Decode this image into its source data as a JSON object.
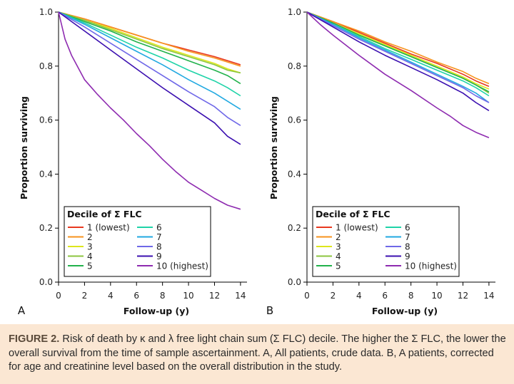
{
  "chart_data": [
    {
      "type": "line",
      "panel_label": "A",
      "xlabel": "Follow-up (y)",
      "ylabel": "Proportion surviving",
      "xlim": [
        0,
        14.5
      ],
      "ylim": [
        0.0,
        1.0
      ],
      "x_ticks": [
        "0",
        "2",
        "4",
        "6",
        "8",
        "10",
        "12",
        "14"
      ],
      "y_ticks": [
        "0.0",
        "0.2",
        "0.4",
        "0.6",
        "0.8",
        "1.0"
      ],
      "legend_title": "Decile of Σ FLC",
      "series": [
        {
          "name": "1 (lowest)",
          "color": "#e8381f",
          "x": [
            0,
            2,
            4,
            6,
            8,
            10,
            12,
            13,
            14
          ],
          "values": [
            1.0,
            0.975,
            0.945,
            0.915,
            0.885,
            0.86,
            0.835,
            0.82,
            0.805
          ]
        },
        {
          "name": "2",
          "color": "#f7931e",
          "x": [
            0,
            2,
            4,
            6,
            8,
            10,
            12,
            13,
            14
          ],
          "values": [
            1.0,
            0.975,
            0.945,
            0.915,
            0.885,
            0.855,
            0.83,
            0.815,
            0.8
          ]
        },
        {
          "name": "3",
          "color": "#dde61c",
          "x": [
            0,
            2,
            4,
            6,
            8,
            10,
            12,
            13,
            14
          ],
          "values": [
            1.0,
            0.97,
            0.94,
            0.905,
            0.87,
            0.84,
            0.81,
            0.79,
            0.775
          ]
        },
        {
          "name": "4",
          "color": "#8cc63f",
          "x": [
            0,
            2,
            4,
            6,
            8,
            10,
            12,
            13,
            14
          ],
          "values": [
            1.0,
            0.97,
            0.935,
            0.9,
            0.865,
            0.835,
            0.805,
            0.785,
            0.775
          ]
        },
        {
          "name": "5",
          "color": "#22b24c",
          "x": [
            0,
            2,
            4,
            6,
            8,
            10,
            12,
            13,
            14
          ],
          "values": [
            1.0,
            0.965,
            0.93,
            0.89,
            0.855,
            0.82,
            0.785,
            0.765,
            0.735
          ]
        },
        {
          "name": "6",
          "color": "#1fd3a8",
          "x": [
            0,
            2,
            4,
            6,
            8,
            10,
            12,
            13,
            14
          ],
          "values": [
            1.0,
            0.96,
            0.915,
            0.87,
            0.83,
            0.785,
            0.745,
            0.72,
            0.69
          ]
        },
        {
          "name": "7",
          "color": "#22a9e1",
          "x": [
            0,
            2,
            4,
            6,
            8,
            10,
            12,
            13,
            14
          ],
          "values": [
            1.0,
            0.955,
            0.905,
            0.855,
            0.805,
            0.75,
            0.7,
            0.67,
            0.64
          ]
        },
        {
          "name": "8",
          "color": "#6f68e8",
          "x": [
            0,
            2,
            4,
            6,
            8,
            10,
            12,
            13,
            14
          ],
          "values": [
            1.0,
            0.945,
            0.885,
            0.825,
            0.765,
            0.705,
            0.65,
            0.61,
            0.58
          ]
        },
        {
          "name": "9",
          "color": "#3b0fb0",
          "x": [
            0,
            2,
            4,
            6,
            8,
            10,
            12,
            13,
            14
          ],
          "values": [
            1.0,
            0.93,
            0.86,
            0.79,
            0.72,
            0.655,
            0.59,
            0.54,
            0.51
          ]
        },
        {
          "name": "10 (highest)",
          "color": "#8e2bb0",
          "x": [
            0,
            0.5,
            1,
            2,
            3,
            4,
            5,
            6,
            7,
            8,
            9,
            10,
            11,
            12,
            13,
            14
          ],
          "values": [
            1.0,
            0.9,
            0.84,
            0.75,
            0.695,
            0.645,
            0.6,
            0.55,
            0.505,
            0.455,
            0.41,
            0.37,
            0.34,
            0.31,
            0.285,
            0.27
          ]
        }
      ]
    },
    {
      "type": "line",
      "panel_label": "B",
      "xlabel": "Follow-up (y)",
      "ylabel": "Proportion surviving",
      "xlim": [
        0,
        14.5
      ],
      "ylim": [
        0.0,
        1.0
      ],
      "x_ticks": [
        "0",
        "2",
        "4",
        "6",
        "8",
        "10",
        "12",
        "14"
      ],
      "y_ticks": [
        "0.0",
        "0.2",
        "0.4",
        "0.6",
        "0.8",
        "1.0"
      ],
      "legend_title": "Decile of Σ FLC",
      "series": [
        {
          "name": "1 (lowest)",
          "color": "#e8381f",
          "x": [
            0,
            2,
            4,
            6,
            8,
            10,
            12,
            13,
            14
          ],
          "values": [
            1.0,
            0.965,
            0.925,
            0.885,
            0.845,
            0.81,
            0.77,
            0.745,
            0.725
          ]
        },
        {
          "name": "2",
          "color": "#f7931e",
          "x": [
            0,
            2,
            4,
            6,
            8,
            10,
            12,
            13,
            14
          ],
          "values": [
            1.0,
            0.965,
            0.93,
            0.89,
            0.855,
            0.815,
            0.78,
            0.755,
            0.735
          ]
        },
        {
          "name": "3",
          "color": "#dde61c",
          "x": [
            0,
            2,
            4,
            6,
            8,
            10,
            12,
            13,
            14
          ],
          "values": [
            1.0,
            0.96,
            0.92,
            0.88,
            0.84,
            0.8,
            0.76,
            0.735,
            0.715
          ]
        },
        {
          "name": "4",
          "color": "#8cc63f",
          "x": [
            0,
            2,
            4,
            6,
            8,
            10,
            12,
            13,
            14
          ],
          "values": [
            1.0,
            0.96,
            0.915,
            0.875,
            0.835,
            0.795,
            0.755,
            0.73,
            0.7
          ]
        },
        {
          "name": "5",
          "color": "#22b24c",
          "x": [
            0,
            2,
            4,
            6,
            8,
            10,
            12,
            13,
            14
          ],
          "values": [
            1.0,
            0.96,
            0.915,
            0.875,
            0.835,
            0.795,
            0.755,
            0.73,
            0.705
          ]
        },
        {
          "name": "6",
          "color": "#1fd3a8",
          "x": [
            0,
            2,
            4,
            6,
            8,
            10,
            12,
            13,
            14
          ],
          "values": [
            1.0,
            0.955,
            0.91,
            0.865,
            0.825,
            0.785,
            0.745,
            0.72,
            0.69
          ]
        },
        {
          "name": "7",
          "color": "#22a9e1",
          "x": [
            0,
            2,
            4,
            6,
            8,
            10,
            12,
            13,
            14
          ],
          "values": [
            1.0,
            0.955,
            0.905,
            0.86,
            0.815,
            0.77,
            0.725,
            0.7,
            0.665
          ]
        },
        {
          "name": "8",
          "color": "#6f68e8",
          "x": [
            0,
            2,
            4,
            6,
            8,
            10,
            12,
            13,
            14
          ],
          "values": [
            1.0,
            0.95,
            0.9,
            0.855,
            0.81,
            0.765,
            0.72,
            0.69,
            0.665
          ]
        },
        {
          "name": "9",
          "color": "#3b0fb0",
          "x": [
            0,
            2,
            4,
            6,
            8,
            10,
            12,
            13,
            14
          ],
          "values": [
            1.0,
            0.945,
            0.89,
            0.84,
            0.795,
            0.75,
            0.7,
            0.665,
            0.635
          ]
        },
        {
          "name": "10 (highest)",
          "color": "#8e2bb0",
          "x": [
            0,
            1,
            2,
            4,
            6,
            8,
            10,
            11,
            12,
            13,
            14
          ],
          "values": [
            1.0,
            0.955,
            0.915,
            0.84,
            0.77,
            0.71,
            0.645,
            0.615,
            0.58,
            0.555,
            0.535
          ]
        }
      ]
    }
  ],
  "caption": {
    "label": "FIGURE 2.",
    "text": " Risk of death by κ and λ free light chain sum (Σ FLC) decile. The higher the Σ FLC, the lower the overall survival from the time of sample ascertainment. A, All patients, crude data. B, A patients, corrected for age and creatinine level based on the overall distribution in the study."
  }
}
